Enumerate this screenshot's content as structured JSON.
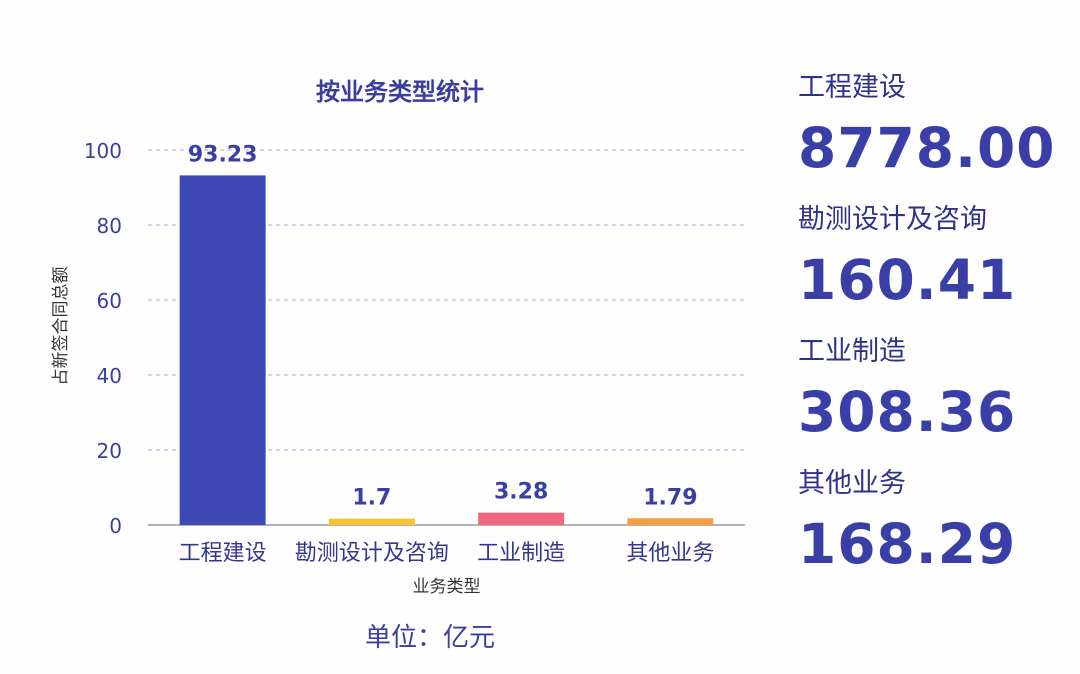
{
  "colors": {
    "title": "#3a3f9e",
    "axis_text": "#3a3f9e",
    "grid": "#aab0dc",
    "value_text": "#3a3fa8"
  },
  "chart_data": {
    "type": "bar",
    "title": "按业务类型统计",
    "categories": [
      "工程建设",
      "勘测设计及咨询",
      "工业制造",
      "其他业务"
    ],
    "values": [
      93.23,
      1.7,
      3.28,
      1.79
    ],
    "value_labels": [
      "93.23",
      "1.7",
      "3.28",
      "1.79"
    ],
    "bar_colors": [
      "#3d48b5",
      "#f5c430",
      "#f0677c",
      "#f5a044"
    ],
    "xlabel": "业务类型",
    "ylabel": "占新签合同总额",
    "ylim": [
      0,
      100
    ],
    "yticks": [
      0,
      20,
      40,
      60,
      80,
      100
    ],
    "grid": true,
    "grid_style": "dashed"
  },
  "unit_note": "单位：亿元",
  "stats": [
    {
      "label": "工程建设",
      "value": "8778.00"
    },
    {
      "label": "勘测设计及咨询",
      "value": "160.41"
    },
    {
      "label": "工业制造",
      "value": "308.36"
    },
    {
      "label": "其他业务",
      "value": "168.29"
    }
  ]
}
